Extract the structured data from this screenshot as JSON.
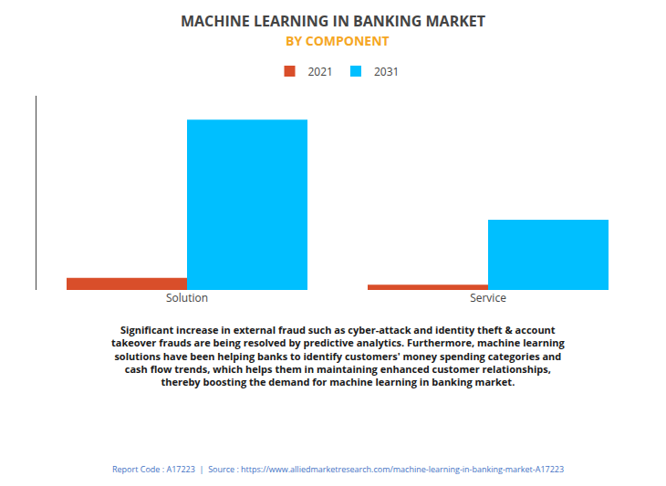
{
  "chart_data": {
    "type": "bar",
    "title": "MACHINE LEARNING IN BANKING MARKET",
    "subtitle": "BY COMPONENT",
    "categories": [
      "Solution",
      "Service"
    ],
    "series": [
      {
        "name": "2021",
        "color": "#D94E2A",
        "values": [
          0.65,
          0.28
        ]
      },
      {
        "name": "2031",
        "color": "#00BFFF",
        "values": [
          9.2,
          3.8
        ]
      }
    ],
    "ylim": [
      0,
      10.5
    ],
    "grid": false,
    "tick_labels": "x",
    "legend": "top",
    "annotations": [
      "Significant increase in external fraud such as cyber-attack and identity theft & account",
      "takeover frauds are being resolved by predictive analytics. Furthermore, machine learning",
      "solutions have been helping banks to identify customers' money spending categories and",
      "cash flow trends, which helps them in maintaining enhanced customer relationships,",
      "thereby boosting the demand for machine learning in banking market.",
      "Report Code : A17223  |  Source : https://www.alliedmarketresearch.com/machine-learning-in-banking-market-A17223"
    ]
  }
}
